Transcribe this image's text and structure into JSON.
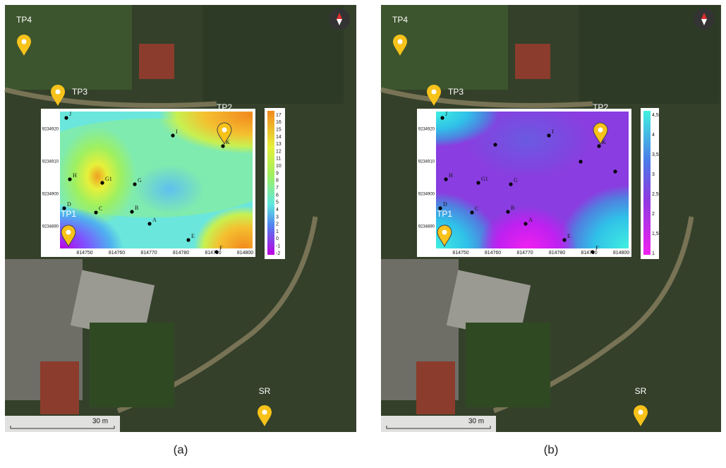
{
  "panels": [
    {
      "caption": "(a)",
      "markers": [
        "TP4",
        "TP3",
        "TP2",
        "TP1",
        "SR"
      ],
      "scale": "30 m",
      "plot": {
        "points": [
          "J",
          "I",
          "K",
          "H",
          "G1",
          "G",
          "D",
          "C",
          "B",
          "A",
          "E",
          "F"
        ],
        "xticks": [
          814750,
          814760,
          814770,
          814780,
          814790,
          814800
        ],
        "yticks": [
          9234920,
          9234910,
          9234900,
          9234890
        ],
        "colorbar": [
          "17",
          "16",
          "15",
          "14",
          "13",
          "12",
          "11",
          "10",
          "9",
          "8",
          "7",
          "6",
          "5",
          "4",
          "3",
          "2",
          "1",
          "0",
          "-1",
          "-2"
        ]
      }
    },
    {
      "caption": "(b)",
      "markers": [
        "TP4",
        "TP3",
        "TP2",
        "TP1",
        "SR"
      ],
      "scale": "30 m",
      "plot": {
        "points": [
          "J",
          "I",
          "K",
          "H",
          "G1",
          "G",
          "D",
          "C",
          "B",
          "A",
          "E",
          "F"
        ],
        "xticks": [
          814750,
          814760,
          814770,
          814780,
          814790,
          814800
        ],
        "yticks": [
          9234920,
          9234910,
          9234900,
          9234890
        ],
        "colorbar": [
          "4,5",
          "4",
          "3,5",
          "3",
          "2,5",
          "2",
          "1,5",
          "1"
        ]
      }
    }
  ]
}
